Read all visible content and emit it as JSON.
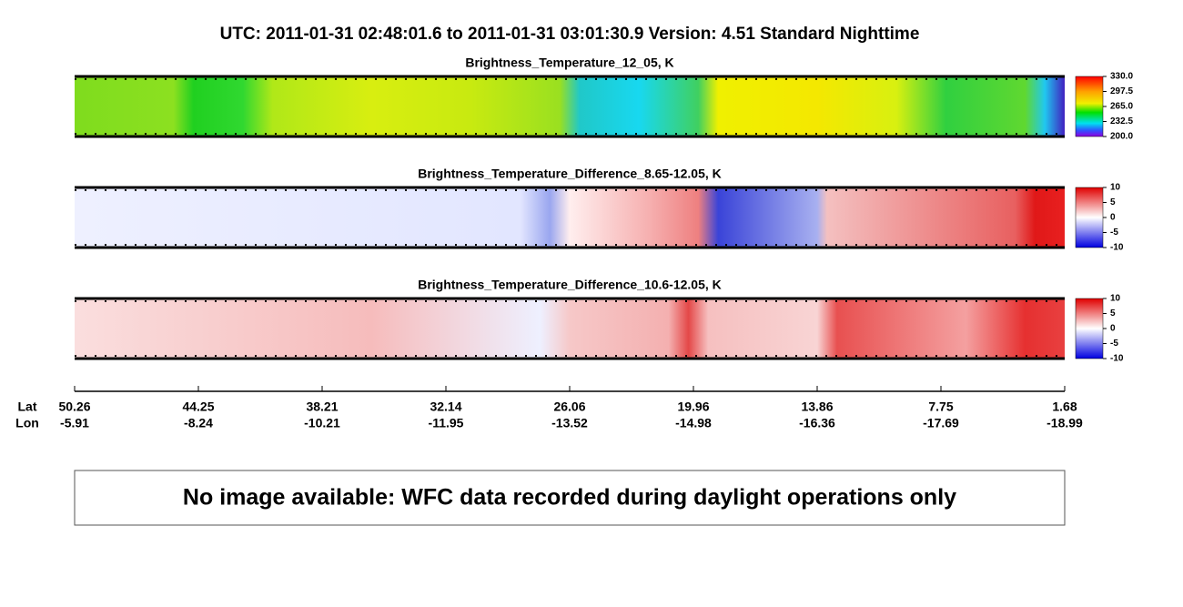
{
  "header": {
    "title": "UTC:  2011-01-31   02:48:01.6  to  2011-01-31   03:01:30.9    Version: 4.51  Standard Nighttime"
  },
  "panels": [
    {
      "title": "Brightness_Temperature_12_05, K",
      "colorbar_labels": [
        "330.0",
        "297.5",
        "265.0",
        "232.5",
        "200.0"
      ]
    },
    {
      "title": "Brightness_Temperature_Difference_8.65-12.05, K",
      "colorbar_labels": [
        "10",
        "5",
        "0",
        "-5",
        "-10"
      ]
    },
    {
      "title": "Brightness_Temperature_Difference_10.6-12.05, K",
      "colorbar_labels": [
        "10",
        "5",
        "0",
        "-5",
        "-10"
      ]
    }
  ],
  "axis": {
    "lat_title": "Lat",
    "lon_title": "Lon",
    "lat_labels": [
      "50.26",
      "44.25",
      "38.21",
      "32.14",
      "26.06",
      "19.96",
      "13.86",
      "7.75",
      "1.68"
    ],
    "lon_labels": [
      "-5.91",
      "-8.24",
      "-10.21",
      "-11.95",
      "-13.52",
      "-14.98",
      "-16.36",
      "-17.69",
      "-18.99"
    ]
  },
  "notice": "No image available: WFC data recorded during daylight operations only"
}
